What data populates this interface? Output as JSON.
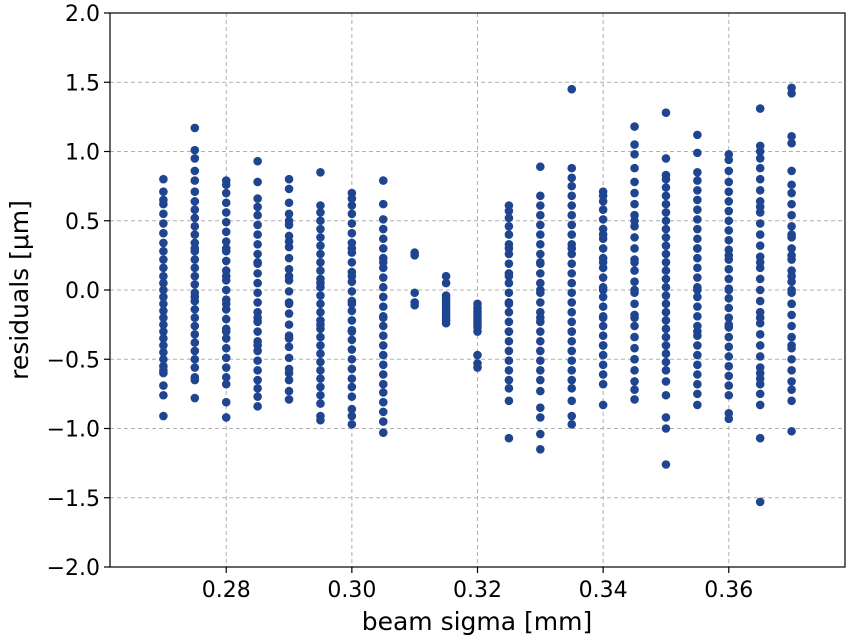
{
  "chart_data": {
    "type": "scatter",
    "xlabel": "beam sigma [mm]",
    "ylabel": "residuals [μm]",
    "xlim": [
      0.2615,
      0.3785
    ],
    "ylim": [
      -2.0,
      2.0
    ],
    "x_ticks": [
      0.28,
      0.3,
      0.32,
      0.34,
      0.36
    ],
    "x_tick_labels": [
      "0.28",
      "0.30",
      "0.32",
      "0.34",
      "0.36"
    ],
    "y_ticks": [
      -2.0,
      -1.5,
      -1.0,
      -0.5,
      0.0,
      0.5,
      1.0,
      1.5,
      2.0
    ],
    "y_tick_labels": [
      "−2.0",
      "−1.5",
      "−1.0",
      "−0.5",
      "0.0",
      "0.5",
      "1.0",
      "1.5",
      "2.0"
    ],
    "grid": true,
    "marker_color": "#1f4590",
    "series": [
      {
        "x": [
          0.27,
          0.27,
          0.27,
          0.27,
          0.27,
          0.27,
          0.27,
          0.27,
          0.27,
          0.27,
          0.27,
          0.27,
          0.27,
          0.27,
          0.27,
          0.27,
          0.27,
          0.27,
          0.27,
          0.27,
          0.27,
          0.27,
          0.27,
          0.27,
          0.27,
          0.27,
          0.27,
          0.27,
          0.27,
          0.27,
          0.275,
          0.275,
          0.275,
          0.275,
          0.275,
          0.275,
          0.275,
          0.275,
          0.275,
          0.275,
          0.275,
          0.275,
          0.275,
          0.275,
          0.275,
          0.275,
          0.275,
          0.275,
          0.275,
          0.275,
          0.275,
          0.275,
          0.275,
          0.275,
          0.275,
          0.275,
          0.275,
          0.275,
          0.275,
          0.275,
          0.275,
          0.275,
          0.28,
          0.28,
          0.28,
          0.28,
          0.28,
          0.28,
          0.28,
          0.28,
          0.28,
          0.28,
          0.28,
          0.28,
          0.28,
          0.28,
          0.28,
          0.28,
          0.28,
          0.28,
          0.28,
          0.28,
          0.28,
          0.28,
          0.28,
          0.28,
          0.28,
          0.28,
          0.28,
          0.28,
          0.28,
          0.285,
          0.285,
          0.285,
          0.285,
          0.285,
          0.285,
          0.285,
          0.285,
          0.285,
          0.285,
          0.285,
          0.285,
          0.285,
          0.285,
          0.285,
          0.285,
          0.285,
          0.285,
          0.285,
          0.285,
          0.285,
          0.285,
          0.285,
          0.285,
          0.285,
          0.285,
          0.285,
          0.285,
          0.29,
          0.29,
          0.29,
          0.29,
          0.29,
          0.29,
          0.29,
          0.29,
          0.29,
          0.29,
          0.29,
          0.29,
          0.29,
          0.29,
          0.29,
          0.29,
          0.29,
          0.29,
          0.29,
          0.29,
          0.29,
          0.29,
          0.29,
          0.29,
          0.29,
          0.29,
          0.29,
          0.295,
          0.295,
          0.295,
          0.295,
          0.295,
          0.295,
          0.295,
          0.295,
          0.295,
          0.295,
          0.295,
          0.295,
          0.295,
          0.295,
          0.295,
          0.295,
          0.295,
          0.295,
          0.295,
          0.295,
          0.295,
          0.295,
          0.295,
          0.295,
          0.295,
          0.295,
          0.295,
          0.295,
          0.295,
          0.295,
          0.3,
          0.3,
          0.3,
          0.3,
          0.3,
          0.3,
          0.3,
          0.3,
          0.3,
          0.3,
          0.3,
          0.3,
          0.3,
          0.3,
          0.3,
          0.3,
          0.3,
          0.3,
          0.3,
          0.3,
          0.3,
          0.3,
          0.3,
          0.3,
          0.3,
          0.3,
          0.3,
          0.3,
          0.3,
          0.3,
          0.305,
          0.305,
          0.305,
          0.305,
          0.305,
          0.305,
          0.305,
          0.305,
          0.305,
          0.305,
          0.305,
          0.305,
          0.305,
          0.305,
          0.305,
          0.305,
          0.305,
          0.305,
          0.305,
          0.305,
          0.305,
          0.305,
          0.305,
          0.305,
          0.305,
          0.305,
          0.305,
          0.31,
          0.31,
          0.31,
          0.31,
          0.31,
          0.315,
          0.315,
          0.315,
          0.315,
          0.315,
          0.315,
          0.315,
          0.315,
          0.315,
          0.315,
          0.315,
          0.315,
          0.315,
          0.32,
          0.32,
          0.32,
          0.32,
          0.32,
          0.32,
          0.32,
          0.32,
          0.32,
          0.32,
          0.32,
          0.32,
          0.32,
          0.325,
          0.325,
          0.325,
          0.325,
          0.325,
          0.325,
          0.325,
          0.325,
          0.325,
          0.325,
          0.325,
          0.325,
          0.325,
          0.325,
          0.325,
          0.325,
          0.325,
          0.325,
          0.325,
          0.325,
          0.325,
          0.325,
          0.325,
          0.325,
          0.325,
          0.325,
          0.325,
          0.33,
          0.33,
          0.33,
          0.33,
          0.33,
          0.33,
          0.33,
          0.33,
          0.33,
          0.33,
          0.33,
          0.33,
          0.33,
          0.33,
          0.33,
          0.33,
          0.33,
          0.33,
          0.33,
          0.33,
          0.33,
          0.33,
          0.33,
          0.33,
          0.33,
          0.33,
          0.33,
          0.33,
          0.33,
          0.335,
          0.335,
          0.335,
          0.335,
          0.335,
          0.335,
          0.335,
          0.335,
          0.335,
          0.335,
          0.335,
          0.335,
          0.335,
          0.335,
          0.335,
          0.335,
          0.335,
          0.335,
          0.335,
          0.335,
          0.335,
          0.335,
          0.335,
          0.335,
          0.335,
          0.335,
          0.335,
          0.335,
          0.335,
          0.335,
          0.34,
          0.34,
          0.34,
          0.34,
          0.34,
          0.34,
          0.34,
          0.34,
          0.34,
          0.34,
          0.34,
          0.34,
          0.34,
          0.34,
          0.34,
          0.34,
          0.34,
          0.34,
          0.34,
          0.34,
          0.34,
          0.34,
          0.34,
          0.34,
          0.34,
          0.34,
          0.34,
          0.34,
          0.345,
          0.345,
          0.345,
          0.345,
          0.345,
          0.345,
          0.345,
          0.345,
          0.345,
          0.345,
          0.345,
          0.345,
          0.345,
          0.345,
          0.345,
          0.345,
          0.345,
          0.345,
          0.345,
          0.345,
          0.345,
          0.345,
          0.345,
          0.345,
          0.345,
          0.345,
          0.345,
          0.345,
          0.345,
          0.345,
          0.35,
          0.35,
          0.35,
          0.35,
          0.35,
          0.35,
          0.35,
          0.35,
          0.35,
          0.35,
          0.35,
          0.35,
          0.35,
          0.35,
          0.35,
          0.35,
          0.35,
          0.35,
          0.35,
          0.35,
          0.35,
          0.35,
          0.35,
          0.35,
          0.35,
          0.35,
          0.35,
          0.35,
          0.35,
          0.35,
          0.35,
          0.35,
          0.355,
          0.355,
          0.355,
          0.355,
          0.355,
          0.355,
          0.355,
          0.355,
          0.355,
          0.355,
          0.355,
          0.355,
          0.355,
          0.355,
          0.355,
          0.355,
          0.355,
          0.355,
          0.355,
          0.355,
          0.355,
          0.355,
          0.355,
          0.355,
          0.355,
          0.355,
          0.355,
          0.355,
          0.355,
          0.355,
          0.36,
          0.36,
          0.36,
          0.36,
          0.36,
          0.36,
          0.36,
          0.36,
          0.36,
          0.36,
          0.36,
          0.36,
          0.36,
          0.36,
          0.36,
          0.36,
          0.36,
          0.36,
          0.36,
          0.36,
          0.36,
          0.36,
          0.36,
          0.36,
          0.36,
          0.36,
          0.36,
          0.36,
          0.36,
          0.36,
          0.36,
          0.365,
          0.365,
          0.365,
          0.365,
          0.365,
          0.365,
          0.365,
          0.365,
          0.365,
          0.365,
          0.365,
          0.365,
          0.365,
          0.365,
          0.365,
          0.365,
          0.365,
          0.365,
          0.365,
          0.365,
          0.365,
          0.365,
          0.365,
          0.365,
          0.365,
          0.365,
          0.365,
          0.365,
          0.365,
          0.365,
          0.365,
          0.365,
          0.365,
          0.37,
          0.37,
          0.37,
          0.37,
          0.37,
          0.37,
          0.37,
          0.37,
          0.37,
          0.37,
          0.37,
          0.37,
          0.37,
          0.37,
          0.37,
          0.37,
          0.37,
          0.37,
          0.37,
          0.37,
          0.37,
          0.37,
          0.37,
          0.37,
          0.37,
          0.37,
          0.37,
          0.37,
          0.37,
          0.37,
          0.37,
          0.37,
          0.37
        ],
        "y": [
          0.8,
          0.71,
          0.62,
          0.55,
          0.48,
          0.41,
          0.34,
          0.28,
          0.22,
          0.16,
          0.1,
          0.05,
          0.0,
          -0.05,
          -0.1,
          -0.15,
          -0.2,
          -0.25,
          -0.3,
          -0.35,
          -0.4,
          -0.45,
          -0.5,
          -0.55,
          -0.6,
          -0.69,
          -0.76,
          -0.91,
          0.65,
          -0.58,
          1.17,
          1.01,
          0.86,
          0.79,
          0.71,
          0.64,
          0.58,
          0.52,
          0.46,
          0.4,
          0.34,
          0.28,
          0.22,
          0.16,
          0.1,
          0.04,
          -0.02,
          -0.08,
          -0.14,
          -0.2,
          -0.26,
          -0.32,
          -0.38,
          -0.44,
          -0.5,
          -0.56,
          -0.65,
          -0.78,
          -0.63,
          0.95,
          0.3,
          -0.05,
          0.79,
          0.76,
          0.7,
          0.63,
          0.56,
          0.49,
          0.42,
          0.35,
          0.28,
          0.21,
          0.14,
          0.07,
          0.0,
          -0.07,
          -0.14,
          -0.21,
          -0.28,
          -0.35,
          -0.42,
          -0.49,
          -0.56,
          -0.63,
          -0.68,
          -0.81,
          -0.92,
          0.1,
          -0.1,
          0.3,
          -0.3,
          0.93,
          0.78,
          0.66,
          0.54,
          0.47,
          0.4,
          0.33,
          0.26,
          0.19,
          0.12,
          0.05,
          -0.02,
          -0.09,
          -0.16,
          -0.23,
          -0.3,
          -0.37,
          -0.44,
          -0.51,
          -0.58,
          -0.65,
          -0.71,
          -0.77,
          -0.84,
          0.2,
          -0.2,
          0.6,
          -0.4,
          0.8,
          0.73,
          0.63,
          0.55,
          0.47,
          0.39,
          0.31,
          0.23,
          0.15,
          0.07,
          -0.01,
          -0.09,
          -0.17,
          -0.25,
          -0.33,
          -0.41,
          -0.49,
          -0.57,
          -0.65,
          -0.73,
          -0.79,
          0.1,
          -0.1,
          0.35,
          -0.35,
          0.5,
          -0.6,
          0.85,
          0.61,
          0.56,
          0.5,
          0.44,
          0.38,
          0.32,
          0.26,
          0.2,
          0.14,
          0.08,
          0.02,
          -0.04,
          -0.1,
          -0.16,
          -0.22,
          -0.28,
          -0.34,
          -0.4,
          -0.46,
          -0.52,
          -0.58,
          -0.64,
          -0.7,
          -0.76,
          -0.82,
          -0.91,
          -0.94,
          0.05,
          -0.25,
          0.7,
          0.66,
          0.61,
          0.55,
          0.48,
          0.41,
          0.34,
          0.27,
          0.2,
          0.13,
          0.06,
          -0.01,
          -0.08,
          -0.15,
          -0.22,
          -0.29,
          -0.36,
          -0.43,
          -0.5,
          -0.57,
          -0.64,
          -0.7,
          -0.77,
          -0.86,
          -0.91,
          -0.97,
          0.3,
          -0.3,
          0.1,
          -0.1,
          0.79,
          0.62,
          0.51,
          0.44,
          0.37,
          0.3,
          0.23,
          0.16,
          0.09,
          0.02,
          -0.05,
          -0.12,
          -0.19,
          -0.26,
          -0.33,
          -0.4,
          -0.47,
          -0.54,
          -0.61,
          -0.68,
          -0.74,
          -0.81,
          -0.88,
          -0.95,
          -1.03,
          0.2,
          -0.2,
          0.27,
          0.25,
          -0.02,
          -0.09,
          -0.11,
          0.1,
          0.05,
          -0.04,
          -0.08,
          -0.1,
          -0.12,
          -0.14,
          -0.16,
          -0.18,
          -0.2,
          -0.22,
          -0.24,
          -0.06,
          -0.1,
          -0.13,
          -0.15,
          -0.17,
          -0.19,
          -0.21,
          -0.23,
          -0.25,
          -0.27,
          -0.3,
          -0.47,
          -0.53,
          -0.56,
          0.61,
          0.57,
          0.52,
          0.46,
          0.4,
          0.33,
          0.26,
          0.19,
          0.12,
          0.05,
          -0.02,
          -0.09,
          -0.16,
          -0.23,
          -0.3,
          -0.37,
          -0.44,
          -0.51,
          -0.58,
          -0.65,
          -0.71,
          -0.8,
          -1.07,
          0.1,
          -0.1,
          0.3,
          -0.3,
          0.61,
          0.54,
          0.47,
          0.4,
          0.33,
          0.26,
          0.19,
          0.12,
          0.05,
          -0.02,
          -0.09,
          -0.16,
          -0.23,
          -0.3,
          -0.37,
          -0.44,
          -0.51,
          -0.58,
          -0.65,
          -0.73,
          -0.85,
          -0.92,
          -1.15,
          -1.04,
          0.89,
          0.68,
          0.2,
          -0.2,
          0.0,
          1.45,
          0.88,
          0.81,
          0.75,
          0.68,
          0.61,
          0.54,
          0.47,
          0.4,
          0.33,
          0.26,
          0.19,
          0.12,
          0.05,
          -0.02,
          -0.09,
          -0.16,
          -0.23,
          -0.3,
          -0.37,
          -0.44,
          -0.51,
          -0.58,
          -0.65,
          -0.71,
          -0.8,
          -0.91,
          -0.97,
          0.3,
          -0.3,
          0.71,
          0.68,
          0.64,
          0.58,
          0.51,
          0.44,
          0.37,
          0.3,
          0.23,
          0.16,
          0.09,
          0.02,
          -0.05,
          -0.12,
          -0.19,
          -0.26,
          -0.33,
          -0.4,
          -0.47,
          -0.54,
          -0.61,
          -0.68,
          -0.83,
          0.2,
          -0.2,
          0.4,
          -0.4,
          0.0,
          1.18,
          1.05,
          0.98,
          0.88,
          0.78,
          0.7,
          0.62,
          0.54,
          0.46,
          0.38,
          0.3,
          0.22,
          0.14,
          0.06,
          -0.02,
          -0.1,
          -0.18,
          -0.26,
          -0.34,
          -0.42,
          -0.5,
          -0.58,
          -0.66,
          -0.72,
          -0.79,
          0.2,
          -0.2,
          0.5,
          -0.5,
          0.0,
          1.28,
          0.95,
          0.83,
          0.8,
          0.74,
          0.68,
          0.62,
          0.56,
          0.5,
          0.44,
          0.38,
          0.32,
          0.26,
          0.2,
          0.14,
          0.08,
          0.02,
          -0.04,
          -0.1,
          -0.16,
          -0.22,
          -0.28,
          -0.34,
          -0.4,
          -0.46,
          -0.52,
          -0.58,
          -0.66,
          -0.76,
          -0.92,
          -1.0,
          -1.26,
          1.12,
          0.99,
          0.85,
          0.79,
          0.72,
          0.65,
          0.58,
          0.51,
          0.44,
          0.37,
          0.3,
          0.23,
          0.16,
          0.09,
          0.02,
          -0.05,
          -0.12,
          -0.19,
          -0.26,
          -0.33,
          -0.4,
          -0.47,
          -0.54,
          -0.61,
          -0.68,
          -0.75,
          -0.83,
          0.3,
          -0.3,
          0.0,
          0.98,
          0.94,
          0.86,
          0.78,
          0.71,
          0.64,
          0.57,
          0.5,
          0.43,
          0.36,
          0.29,
          0.22,
          0.15,
          0.08,
          0.01,
          -0.06,
          -0.13,
          -0.2,
          -0.27,
          -0.34,
          -0.41,
          -0.48,
          -0.55,
          -0.62,
          -0.69,
          -0.76,
          -0.89,
          -0.93,
          0.25,
          -0.25,
          0.0,
          1.31,
          1.04,
          1.0,
          0.95,
          0.88,
          0.8,
          0.72,
          0.64,
          0.56,
          0.48,
          0.4,
          0.32,
          0.24,
          0.16,
          0.08,
          0.0,
          -0.08,
          -0.16,
          -0.24,
          -0.32,
          -0.4,
          -0.48,
          -0.56,
          -0.64,
          -0.68,
          -0.75,
          -0.83,
          -1.07,
          -1.53,
          0.2,
          -0.2,
          0.6,
          -0.6,
          1.46,
          1.42,
          1.11,
          1.06,
          0.86,
          0.76,
          0.7,
          0.62,
          0.54,
          0.46,
          0.38,
          0.3,
          0.22,
          0.14,
          0.06,
          -0.02,
          -0.1,
          -0.18,
          -0.26,
          -0.34,
          -0.42,
          -0.5,
          -0.58,
          -0.66,
          -0.72,
          -0.8,
          -1.02,
          0.1,
          -0.1,
          0.4,
          -0.4,
          0.0,
          0.25
        ]
      }
    ]
  }
}
